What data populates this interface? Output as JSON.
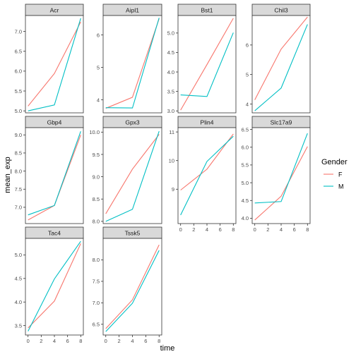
{
  "chart_data": {
    "type": "line",
    "xlabel": "time",
    "ylabel": "mean_exp",
    "x": [
      0,
      4,
      8
    ],
    "x_ticks": [
      "0",
      "2",
      "4",
      "6",
      "8"
    ],
    "legend": {
      "title": "Gender",
      "position": "right",
      "entries": [
        {
          "label": "F",
          "color": "#F8766D"
        },
        {
          "label": "M",
          "color": "#00BFC4"
        }
      ]
    },
    "panels": [
      {
        "title": "Acr",
        "ylim": [
          4.95,
          7.4
        ],
        "yticks": [
          "5.0",
          "5.5",
          "6.0",
          "6.5",
          "7.0"
        ],
        "series": [
          {
            "name": "F",
            "values": [
              5.12,
              5.94,
              7.24
            ]
          },
          {
            "name": "M",
            "values": [
              5.0,
              5.15,
              7.33
            ]
          }
        ]
      },
      {
        "title": "Aipl1",
        "ylim": [
          3.6,
          6.6
        ],
        "yticks": [
          "4",
          "5",
          "6"
        ],
        "series": [
          {
            "name": "F",
            "values": [
              3.74,
              4.08,
              6.5
            ]
          },
          {
            "name": "M",
            "values": [
              3.76,
              3.75,
              6.53
            ]
          }
        ]
      },
      {
        "title": "Bst1",
        "ylim": [
          2.95,
          5.45
        ],
        "yticks": [
          "3.0",
          "3.5",
          "4.0",
          "4.5",
          "5.0"
        ],
        "series": [
          {
            "name": "F",
            "values": [
              3.02,
              4.19,
              5.38
            ]
          },
          {
            "name": "M",
            "values": [
              3.41,
              3.37,
              5.01
            ]
          }
        ]
      },
      {
        "title": "Chil3",
        "ylim": [
          3.7,
          7.0
        ],
        "yticks": [
          "4",
          "5",
          "6"
        ],
        "series": [
          {
            "name": "F",
            "values": [
              4.14,
              5.86,
              6.95
            ]
          },
          {
            "name": "M",
            "values": [
              3.77,
              4.54,
              6.7
            ]
          }
        ]
      },
      {
        "title": "Gbp4",
        "ylim": [
          6.55,
          9.2
        ],
        "yticks": [
          "7.0",
          "7.5",
          "8.0",
          "8.5",
          "9.0"
        ],
        "series": [
          {
            "name": "F",
            "values": [
              6.65,
              7.05,
              9.0
            ]
          },
          {
            "name": "M",
            "values": [
              6.79,
              7.05,
              9.1
            ]
          }
        ]
      },
      {
        "title": "Gpx3",
        "ylim": [
          7.95,
          10.1
        ],
        "yticks": [
          "8.0",
          "8.5",
          "9.0",
          "9.5",
          "10.0"
        ],
        "series": [
          {
            "name": "F",
            "values": [
              8.17,
              9.17,
              9.95
            ]
          },
          {
            "name": "M",
            "values": [
              8.0,
              8.27,
              10.02
            ]
          }
        ]
      },
      {
        "title": "Plin4",
        "ylim": [
          7.8,
          11.15
        ],
        "yticks": [
          "9",
          "10",
          "11"
        ],
        "series": [
          {
            "name": "F",
            "values": [
              8.97,
              9.7,
              10.93
            ]
          },
          {
            "name": "M",
            "values": [
              8.1,
              9.97,
              10.85
            ]
          }
        ]
      },
      {
        "title": "Slc17a9",
        "ylim": [
          3.85,
          6.55
        ],
        "yticks": [
          "4.0",
          "4.5",
          "5.0",
          "5.5",
          "6.0",
          "6.5"
        ],
        "series": [
          {
            "name": "F",
            "values": [
              3.95,
              4.62,
              6.02
            ]
          },
          {
            "name": "M",
            "values": [
              4.43,
              4.47,
              6.39
            ]
          }
        ]
      },
      {
        "title": "Tac4",
        "ylim": [
          3.3,
          5.35
        ],
        "yticks": [
          "3.5",
          "4.0",
          "4.5",
          "5.0"
        ],
        "series": [
          {
            "name": "F",
            "values": [
              3.45,
              4.02,
              5.24
            ]
          },
          {
            "name": "M",
            "values": [
              3.38,
              4.49,
              5.29
            ]
          }
        ]
      },
      {
        "title": "Tssk5",
        "ylim": [
          6.25,
          8.5
        ],
        "yticks": [
          "6.5",
          "7.0",
          "7.5",
          "8.0"
        ],
        "series": [
          {
            "name": "F",
            "values": [
              6.4,
              7.07,
              8.35
            ]
          },
          {
            "name": "M",
            "values": [
              6.33,
              6.99,
              8.22
            ]
          }
        ]
      }
    ]
  }
}
